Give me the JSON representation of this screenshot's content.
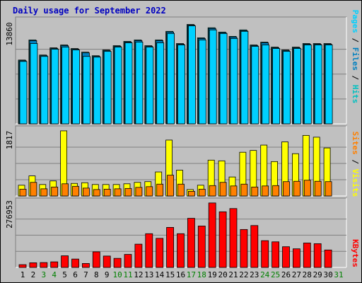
{
  "title": "Daily usage for September 2022",
  "colors": {
    "background": "#c0c0c0",
    "title": "#0000c0",
    "gridline": "#808080",
    "hits": "#00c0c0",
    "files": "#0080c0",
    "pages": "#00d0ff",
    "visits": "#ffff00",
    "sites": "#ff8000",
    "kbytes": "#ff0000",
    "weekend_day": "#008000",
    "weekday": "#000000"
  },
  "right_labels": {
    "pages": "Pages",
    "files": "Files",
    "hits": "Hits",
    "visits": "Visits",
    "sites": "Sites",
    "kbytes": "KBytes",
    "sep": " / "
  },
  "chart_data": [
    {
      "type": "bar",
      "name": "hits-files-pages",
      "ymax_label": "13860",
      "ylim": [
        0,
        13860
      ],
      "grid": true,
      "categories": [
        "1",
        "2",
        "3",
        "4",
        "5",
        "6",
        "7",
        "8",
        "9",
        "10",
        "11",
        "12",
        "13",
        "14",
        "15",
        "16",
        "17",
        "18",
        "19",
        "20",
        "21",
        "22",
        "23",
        "24",
        "25",
        "26",
        "27",
        "28",
        "29",
        "30",
        "31"
      ],
      "weekend_categories": [
        "3",
        "4",
        "10",
        "11",
        "17",
        "18",
        "24",
        "25",
        "31"
      ],
      "series": [
        {
          "name": "Hits",
          "values": [
            8900,
            11700,
            9600,
            10600,
            11000,
            10500,
            10000,
            9500,
            10300,
            10900,
            11500,
            11700,
            10900,
            11700,
            12900,
            11200,
            13860,
            12000,
            13400,
            12800,
            12200,
            13100,
            11000,
            11400,
            10700,
            10300,
            10700,
            11200,
            11200,
            11200,
            0
          ]
        },
        {
          "name": "Files",
          "values": [
            8900,
            11700,
            9600,
            10600,
            11000,
            10500,
            10000,
            9500,
            10300,
            10900,
            11500,
            11700,
            10900,
            11700,
            12900,
            11200,
            13860,
            12000,
            13400,
            12800,
            12200,
            13100,
            11000,
            11400,
            10700,
            10300,
            10700,
            11200,
            11200,
            11200,
            0
          ]
        },
        {
          "name": "Pages",
          "values": [
            8900,
            11400,
            9600,
            10600,
            10900,
            10500,
            9600,
            9500,
            10300,
            10900,
            11500,
            11600,
            10900,
            11500,
            12800,
            11200,
            13860,
            11900,
            13300,
            12800,
            12100,
            13100,
            11000,
            11200,
            10700,
            10300,
            10700,
            11200,
            11200,
            11200,
            0
          ]
        }
      ]
    },
    {
      "type": "bar",
      "name": "visits-sites",
      "ymax_label": "1817",
      "ylim": [
        0,
        1817
      ],
      "grid": true,
      "categories": [
        "1",
        "2",
        "3",
        "4",
        "5",
        "6",
        "7",
        "8",
        "9",
        "10",
        "11",
        "12",
        "13",
        "14",
        "15",
        "16",
        "17",
        "18",
        "19",
        "20",
        "21",
        "22",
        "23",
        "24",
        "25",
        "26",
        "27",
        "28",
        "29",
        "30",
        "31"
      ],
      "series": [
        {
          "name": "Visits",
          "values": [
            300,
            560,
            320,
            420,
            1817,
            350,
            370,
            320,
            320,
            320,
            340,
            380,
            400,
            670,
            1560,
            720,
            180,
            300,
            1000,
            980,
            530,
            1220,
            1270,
            1420,
            960,
            1510,
            1180,
            1690,
            1640,
            1340,
            0
          ]
        },
        {
          "name": "Sites",
          "values": [
            190,
            380,
            200,
            250,
            340,
            270,
            220,
            180,
            190,
            200,
            210,
            240,
            260,
            330,
            580,
            330,
            130,
            190,
            290,
            380,
            280,
            330,
            250,
            280,
            290,
            400,
            410,
            440,
            410,
            400,
            0
          ]
        }
      ]
    },
    {
      "type": "bar",
      "name": "kbytes",
      "ymax_label": "276953",
      "ylim": [
        0,
        276953
      ],
      "grid": true,
      "categories": [
        "1",
        "2",
        "3",
        "4",
        "5",
        "6",
        "7",
        "8",
        "9",
        "10",
        "11",
        "12",
        "13",
        "14",
        "15",
        "16",
        "17",
        "18",
        "19",
        "20",
        "21",
        "22",
        "23",
        "24",
        "25",
        "26",
        "27",
        "28",
        "29",
        "30",
        "31"
      ],
      "series": [
        {
          "name": "KBytes",
          "values": [
            12000,
            20000,
            21000,
            24000,
            50000,
            36000,
            17000,
            67000,
            49000,
            39000,
            56000,
            100000,
            145000,
            125000,
            172000,
            145000,
            211000,
            178000,
            276953,
            239000,
            253000,
            163000,
            180000,
            115000,
            110000,
            89000,
            80000,
            105000,
            102000,
            75000,
            0
          ]
        }
      ]
    }
  ]
}
